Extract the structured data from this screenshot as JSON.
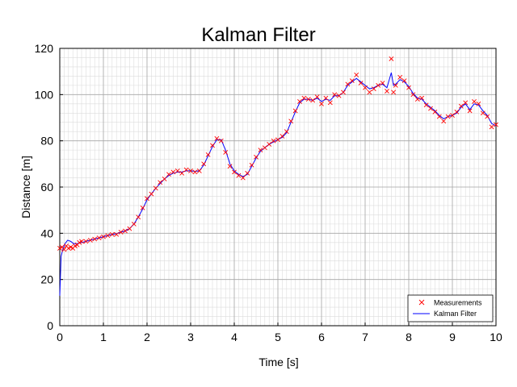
{
  "chart_data": {
    "type": "line",
    "title": "Kalman Filter",
    "xlabel": "Time [s]",
    "ylabel": "Distance [m]",
    "xlim": [
      0,
      10
    ],
    "ylim": [
      0,
      120
    ],
    "xticks": [
      0,
      1,
      2,
      3,
      4,
      5,
      6,
      7,
      8,
      9,
      10
    ],
    "yticks": [
      0,
      20,
      40,
      60,
      80,
      100,
      120
    ],
    "grid": true,
    "minor_grid": true,
    "legend_position": "bottom-right",
    "series": [
      {
        "name": "Measurements",
        "style": "markers",
        "marker": "x",
        "color": "#ff0000",
        "points": [
          [
            0.0,
            33.5
          ],
          [
            0.05,
            34.0
          ],
          [
            0.1,
            33.0
          ],
          [
            0.15,
            34.5
          ],
          [
            0.2,
            33.5
          ],
          [
            0.25,
            34.0
          ],
          [
            0.3,
            33.5
          ],
          [
            0.35,
            34.5
          ],
          [
            0.4,
            35.0
          ],
          [
            0.45,
            36.0
          ],
          [
            0.5,
            36.5
          ],
          [
            0.6,
            36.5
          ],
          [
            0.7,
            37.0
          ],
          [
            0.8,
            37.5
          ],
          [
            0.9,
            38.0
          ],
          [
            1.0,
            38.5
          ],
          [
            1.1,
            39.0
          ],
          [
            1.2,
            39.5
          ],
          [
            1.3,
            39.5
          ],
          [
            1.4,
            40.5
          ],
          [
            1.5,
            41.0
          ],
          [
            1.6,
            42.0
          ],
          [
            1.7,
            44.0
          ],
          [
            1.8,
            47.0
          ],
          [
            1.9,
            51.0
          ],
          [
            2.0,
            55.0
          ],
          [
            2.1,
            57.0
          ],
          [
            2.2,
            59.5
          ],
          [
            2.3,
            62.0
          ],
          [
            2.4,
            63.5
          ],
          [
            2.5,
            65.5
          ],
          [
            2.6,
            66.5
          ],
          [
            2.7,
            67.0
          ],
          [
            2.8,
            66.0
          ],
          [
            2.9,
            67.5
          ],
          [
            3.0,
            67.0
          ],
          [
            3.1,
            66.5
          ],
          [
            3.2,
            67.0
          ],
          [
            3.3,
            70.0
          ],
          [
            3.4,
            74.0
          ],
          [
            3.5,
            78.0
          ],
          [
            3.6,
            81.0
          ],
          [
            3.7,
            80.0
          ],
          [
            3.8,
            75.0
          ],
          [
            3.9,
            69.0
          ],
          [
            4.0,
            66.5
          ],
          [
            4.1,
            65.0
          ],
          [
            4.2,
            64.0
          ],
          [
            4.3,
            66.0
          ],
          [
            4.4,
            69.5
          ],
          [
            4.5,
            73.0
          ],
          [
            4.6,
            76.0
          ],
          [
            4.7,
            77.0
          ],
          [
            4.8,
            78.5
          ],
          [
            4.9,
            80.0
          ],
          [
            5.0,
            80.5
          ],
          [
            5.1,
            82.0
          ],
          [
            5.2,
            84.0
          ],
          [
            5.3,
            88.5
          ],
          [
            5.4,
            93.0
          ],
          [
            5.5,
            97.0
          ],
          [
            5.6,
            98.5
          ],
          [
            5.7,
            98.0
          ],
          [
            5.8,
            97.5
          ],
          [
            5.9,
            99.0
          ],
          [
            6.0,
            96.0
          ],
          [
            6.1,
            98.5
          ],
          [
            6.2,
            96.5
          ],
          [
            6.3,
            100.0
          ],
          [
            6.4,
            99.5
          ],
          [
            6.5,
            101.0
          ],
          [
            6.6,
            104.5
          ],
          [
            6.7,
            106.0
          ],
          [
            6.8,
            108.5
          ],
          [
            6.9,
            105.0
          ],
          [
            7.0,
            103.0
          ],
          [
            7.1,
            101.0
          ],
          [
            7.2,
            102.5
          ],
          [
            7.3,
            104.0
          ],
          [
            7.4,
            105.0
          ],
          [
            7.5,
            101.5
          ],
          [
            7.6,
            115.5
          ],
          [
            7.65,
            101.0
          ],
          [
            7.7,
            104.0
          ],
          [
            7.8,
            107.5
          ],
          [
            7.9,
            106.0
          ],
          [
            8.0,
            103.0
          ],
          [
            8.1,
            100.0
          ],
          [
            8.2,
            98.0
          ],
          [
            8.3,
            98.5
          ],
          [
            8.4,
            95.5
          ],
          [
            8.5,
            94.0
          ],
          [
            8.6,
            92.5
          ],
          [
            8.7,
            90.5
          ],
          [
            8.8,
            88.5
          ],
          [
            8.9,
            90.5
          ],
          [
            9.0,
            91.0
          ],
          [
            9.1,
            92.5
          ],
          [
            9.2,
            95.0
          ],
          [
            9.3,
            96.5
          ],
          [
            9.4,
            93.0
          ],
          [
            9.5,
            97.0
          ],
          [
            9.6,
            96.0
          ],
          [
            9.7,
            92.0
          ],
          [
            9.8,
            90.5
          ],
          [
            9.9,
            86.0
          ],
          [
            10.0,
            87.0
          ]
        ]
      },
      {
        "name": "Kalman Filter",
        "style": "line",
        "color": "#0000ff",
        "points": [
          [
            0.0,
            13.0
          ],
          [
            0.03,
            30.0
          ],
          [
            0.07,
            33.0
          ],
          [
            0.12,
            35.5
          ],
          [
            0.18,
            37.0
          ],
          [
            0.25,
            36.5
          ],
          [
            0.32,
            35.5
          ],
          [
            0.4,
            35.5
          ],
          [
            0.5,
            36.0
          ],
          [
            0.6,
            36.5
          ],
          [
            0.7,
            37.0
          ],
          [
            0.8,
            37.5
          ],
          [
            0.9,
            38.0
          ],
          [
            1.0,
            38.5
          ],
          [
            1.1,
            39.0
          ],
          [
            1.2,
            39.5
          ],
          [
            1.3,
            39.8
          ],
          [
            1.4,
            40.5
          ],
          [
            1.5,
            41.0
          ],
          [
            1.6,
            42.0
          ],
          [
            1.7,
            44.0
          ],
          [
            1.8,
            47.0
          ],
          [
            1.9,
            50.5
          ],
          [
            2.0,
            54.5
          ],
          [
            2.1,
            57.0
          ],
          [
            2.2,
            59.5
          ],
          [
            2.3,
            61.5
          ],
          [
            2.4,
            63.5
          ],
          [
            2.5,
            65.0
          ],
          [
            2.6,
            66.0
          ],
          [
            2.7,
            66.5
          ],
          [
            2.8,
            66.5
          ],
          [
            2.9,
            67.0
          ],
          [
            3.0,
            67.0
          ],
          [
            3.1,
            66.8
          ],
          [
            3.2,
            67.0
          ],
          [
            3.3,
            69.5
          ],
          [
            3.4,
            73.5
          ],
          [
            3.5,
            77.5
          ],
          [
            3.6,
            80.5
          ],
          [
            3.7,
            80.5
          ],
          [
            3.8,
            76.0
          ],
          [
            3.9,
            70.0
          ],
          [
            4.0,
            67.0
          ],
          [
            4.1,
            65.5
          ],
          [
            4.2,
            64.5
          ],
          [
            4.3,
            65.5
          ],
          [
            4.4,
            69.0
          ],
          [
            4.5,
            72.5
          ],
          [
            4.6,
            75.5
          ],
          [
            4.7,
            77.0
          ],
          [
            4.8,
            78.5
          ],
          [
            4.9,
            79.5
          ],
          [
            5.0,
            80.5
          ],
          [
            5.1,
            81.5
          ],
          [
            5.2,
            83.5
          ],
          [
            5.3,
            88.0
          ],
          [
            5.4,
            92.5
          ],
          [
            5.5,
            96.5
          ],
          [
            5.6,
            98.0
          ],
          [
            5.7,
            98.0
          ],
          [
            5.8,
            97.5
          ],
          [
            5.9,
            98.5
          ],
          [
            6.0,
            97.0
          ],
          [
            6.1,
            98.0
          ],
          [
            6.2,
            97.5
          ],
          [
            6.3,
            99.5
          ],
          [
            6.4,
            99.5
          ],
          [
            6.5,
            101.0
          ],
          [
            6.6,
            104.0
          ],
          [
            6.7,
            105.5
          ],
          [
            6.8,
            107.0
          ],
          [
            6.9,
            105.5
          ],
          [
            7.0,
            104.0
          ],
          [
            7.1,
            102.5
          ],
          [
            7.2,
            103.0
          ],
          [
            7.3,
            104.0
          ],
          [
            7.4,
            104.5
          ],
          [
            7.5,
            103.0
          ],
          [
            7.6,
            109.5
          ],
          [
            7.65,
            104.0
          ],
          [
            7.7,
            104.5
          ],
          [
            7.8,
            106.5
          ],
          [
            7.9,
            105.5
          ],
          [
            8.0,
            103.5
          ],
          [
            8.1,
            100.5
          ],
          [
            8.2,
            98.5
          ],
          [
            8.3,
            98.0
          ],
          [
            8.4,
            96.0
          ],
          [
            8.5,
            94.5
          ],
          [
            8.6,
            93.0
          ],
          [
            8.7,
            91.0
          ],
          [
            8.8,
            89.5
          ],
          [
            8.9,
            90.5
          ],
          [
            9.0,
            91.0
          ],
          [
            9.1,
            92.0
          ],
          [
            9.2,
            94.5
          ],
          [
            9.3,
            96.0
          ],
          [
            9.4,
            93.5
          ],
          [
            9.5,
            96.0
          ],
          [
            9.6,
            95.5
          ],
          [
            9.7,
            93.0
          ],
          [
            9.8,
            91.0
          ],
          [
            9.9,
            87.5
          ],
          [
            10.0,
            86.5
          ]
        ]
      }
    ]
  }
}
